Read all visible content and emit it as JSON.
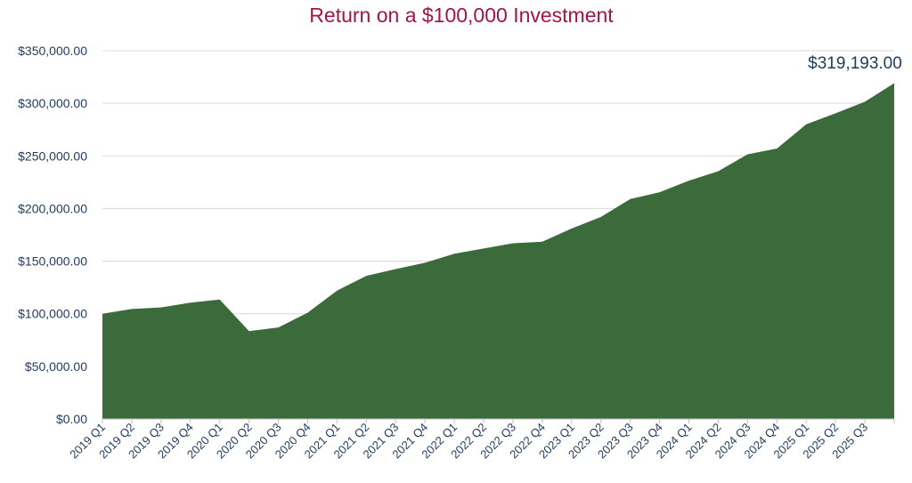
{
  "chart_data": {
    "type": "area",
    "title": "Return on a $100,000 Investment",
    "xlabel": "",
    "ylabel": "",
    "categories": [
      "2019 Q1",
      "2019 Q2",
      "2019 Q3",
      "2019 Q4",
      "2020 Q1",
      "2020 Q2",
      "2020 Q3",
      "2020 Q4",
      "2021 Q1",
      "2021 Q2",
      "2021 Q3",
      "2021 Q4",
      "2022 Q1",
      "2022 Q2",
      "2022 Q3",
      "2022 Q4",
      "2023 Q1",
      "2023 Q2",
      "2023 Q3",
      "2023 Q4",
      "2024 Q1",
      "2024 Q2",
      "2024 Q3",
      "2024 Q4",
      "2025 Q1",
      "2025 Q2",
      "2025 Q3",
      ""
    ],
    "values": [
      100000,
      104500,
      106000,
      110500,
      113500,
      83500,
      87000,
      101000,
      122000,
      136000,
      142500,
      148500,
      157000,
      162000,
      167000,
      168500,
      181000,
      192000,
      209000,
      215500,
      226500,
      235500,
      251500,
      257000,
      280000,
      290500,
      301500,
      319193
    ],
    "ylim": [
      0,
      350000
    ],
    "yticks": [
      0,
      50000,
      100000,
      150000,
      200000,
      250000,
      300000,
      350000
    ],
    "ytick_labels": [
      "$0.00",
      "$50,000.00",
      "$100,000.00",
      "$150,000.00",
      "$200,000.00",
      "$250,000.00",
      "$300,000.00",
      "$350,000.00"
    ],
    "annotation": "$319,193.00",
    "grid": true,
    "legend": "none",
    "colors": {
      "area": "#3b6b3b",
      "title": "#a3144a",
      "text": "#1f3a5f",
      "grid": "#d9d9d9",
      "axis": "#bfbfbf"
    }
  }
}
